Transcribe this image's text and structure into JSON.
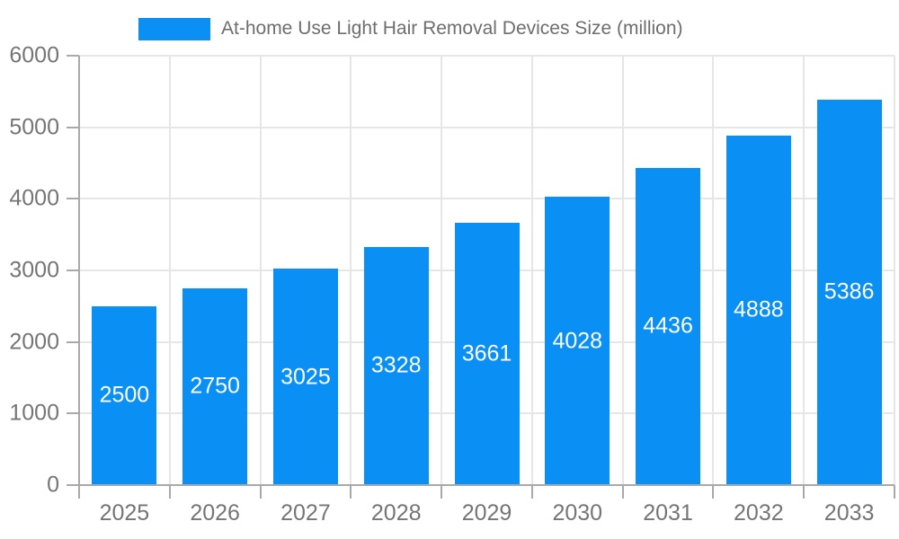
{
  "legend": {
    "label": "At-home Use Light Hair Removal Devices Size (million)"
  },
  "chart_data": {
    "type": "bar",
    "title": "At-home Use Light Hair Removal Devices Size (million)",
    "categories": [
      "2025",
      "2026",
      "2027",
      "2028",
      "2029",
      "2030",
      "2031",
      "2032",
      "2033"
    ],
    "series": [
      {
        "name": "At-home Use Light Hair Removal Devices Size (million)",
        "values": [
          2500,
          2750,
          3025,
          3328,
          3661,
          4028,
          4436,
          4888,
          5386
        ]
      }
    ],
    "data_labels_shown": true,
    "xlabel": "",
    "ylabel": "",
    "ylim": [
      0,
      6000
    ],
    "yticks": [
      0,
      1000,
      2000,
      3000,
      4000,
      5000,
      6000
    ],
    "grid": true,
    "legend_position": "top",
    "colors": {
      "bar": "#0a8ff5",
      "grid": "#e6e6e6",
      "axis": "#a9a9a9",
      "tick_text": "#757575",
      "bar_label_text": "#ffffff",
      "legend_text": "#6e6e6e",
      "background": "#ffffff"
    }
  }
}
